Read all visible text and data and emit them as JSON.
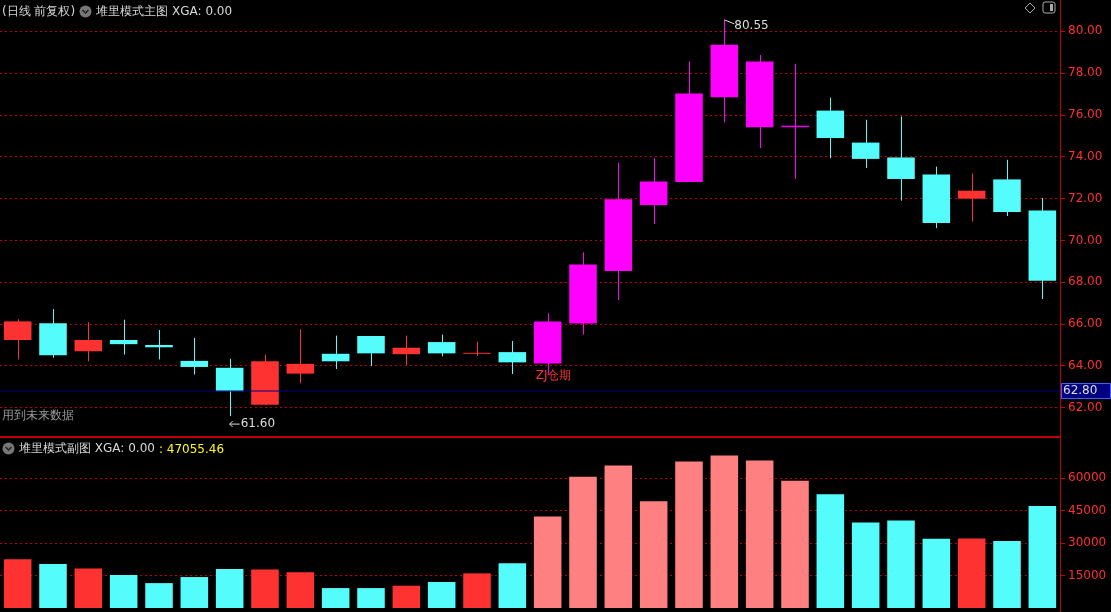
{
  "chart_data": [
    {
      "type": "candlestick",
      "title": "(日线 前复权)",
      "subtitle": "堆里模式主图 XGA: 0.00",
      "categories": [
        null,
        null,
        null,
        null,
        null,
        null,
        null,
        null,
        null,
        null,
        null,
        null,
        null,
        null,
        null,
        null,
        null,
        null,
        null,
        null,
        null,
        null,
        null,
        null,
        null,
        null,
        null,
        null,
        null,
        null
      ],
      "ohlc": [
        [
          65.24,
          66.23,
          64.31,
          66.13
        ],
        [
          66.04,
          66.72,
          64.39,
          64.51
        ],
        [
          64.7,
          66.09,
          64.22,
          65.24
        ],
        [
          65.24,
          66.21,
          64.54,
          65.04
        ],
        [
          65.0,
          65.72,
          64.31,
          64.89
        ],
        [
          64.24,
          65.34,
          63.59,
          63.95
        ],
        [
          63.91,
          64.34,
          61.6,
          62.79
        ],
        [
          62.14,
          64.53,
          62.14,
          64.22
        ],
        [
          63.63,
          65.75,
          63.17,
          64.1
        ],
        [
          64.58,
          65.45,
          63.85,
          64.22
        ],
        [
          65.43,
          65.43,
          64.0,
          64.6
        ],
        [
          64.56,
          65.45,
          64.05,
          64.87
        ],
        [
          65.14,
          65.5,
          64.46,
          64.6
        ],
        [
          64.58,
          65.16,
          64.48,
          64.6
        ],
        [
          64.66,
          65.19,
          63.61,
          64.17
        ],
        [
          64.12,
          66.52,
          63.62,
          66.12
        ],
        [
          66.03,
          69.43,
          65.5,
          68.85
        ],
        [
          68.54,
          73.72,
          67.15,
          71.97
        ],
        [
          71.69,
          73.95,
          70.78,
          72.82
        ],
        [
          72.8,
          78.56,
          72.8,
          77.03
        ],
        [
          76.85,
          80.55,
          75.65,
          79.36
        ],
        [
          75.41,
          78.87,
          74.42,
          78.56
        ],
        [
          75.44,
          78.45,
          72.94,
          75.44
        ],
        [
          76.21,
          76.83,
          73.93,
          74.9
        ],
        [
          74.68,
          75.77,
          73.46,
          73.9
        ],
        [
          73.97,
          75.93,
          71.9,
          72.94
        ],
        [
          73.15,
          73.53,
          70.59,
          70.83
        ],
        [
          72.0,
          73.2,
          70.9,
          72.38
        ],
        [
          72.92,
          73.86,
          71.17,
          71.36
        ],
        [
          71.43,
          72.03,
          67.2,
          68.07
        ]
      ],
      "colors": [
        "#ff3232",
        "#54fcfc",
        "#ff3232",
        "#54fcfc",
        "#54fcfc",
        "#54fcfc",
        "#54fcfc",
        "#ff3232",
        "#ff3232",
        "#54fcfc",
        "#54fcfc",
        "#ff3232",
        "#54fcfc",
        "#ff3232",
        "#54fcfc",
        "#ff00ff",
        "#ff00ff",
        "#ff00ff",
        "#ff00ff",
        "#ff00ff",
        "#ff00ff",
        "#ff00ff",
        "#ff00ff",
        "#54fcfc",
        "#54fcfc",
        "#54fcfc",
        "#54fcfc",
        "#ff3232",
        "#54fcfc",
        "#54fcfc"
      ],
      "ylim": [
        60.6,
        81.5
      ],
      "yticks": [
        {
          "value": 62,
          "label": "62.00"
        },
        {
          "value": 64,
          "label": "64.00"
        },
        {
          "value": 66,
          "label": "66.00"
        },
        {
          "value": 68,
          "label": "68.00"
        },
        {
          "value": 70,
          "label": "70.00"
        },
        {
          "value": 72,
          "label": "72.00"
        },
        {
          "value": 74,
          "label": "74.00"
        },
        {
          "value": 76,
          "label": "76.00"
        },
        {
          "value": 78,
          "label": "78.00"
        },
        {
          "value": 80,
          "label": "80.00"
        }
      ],
      "grid": "y",
      "tick_labels": "y",
      "ref_lines": [
        {
          "axis": "y",
          "value": 62.8,
          "label": "62.80",
          "color": "#000080"
        }
      ],
      "annotations": [
        "80.55",
        "61.60",
        {
          "text": "ZJ仓期",
          "y": 64.12
        },
        "用到未来数据"
      ]
    },
    {
      "type": "bar",
      "title": "堆里模式副图 XGA: 0.00",
      "categories": [
        null,
        null,
        null,
        null,
        null,
        null,
        null,
        null,
        null,
        null,
        null,
        null,
        null,
        null,
        null,
        null,
        null,
        null,
        null,
        null,
        null,
        null,
        null,
        null,
        null,
        null,
        null,
        null,
        null,
        null
      ],
      "values": [
        22500,
        20300,
        18300,
        15200,
        11500,
        14300,
        18000,
        17800,
        16500,
        9200,
        9200,
        10300,
        12000,
        16000,
        20700,
        42300,
        60600,
        65800,
        49300,
        67700,
        70400,
        68200,
        58800,
        52600,
        39500,
        40400,
        32000,
        32100,
        30900,
        47100
      ],
      "colors": [
        "#ff3232",
        "#54fcfc",
        "#ff3232",
        "#54fcfc",
        "#54fcfc",
        "#54fcfc",
        "#54fcfc",
        "#ff3232",
        "#ff3232",
        "#54fcfc",
        "#54fcfc",
        "#ff3232",
        "#54fcfc",
        "#ff3232",
        "#54fcfc",
        "#ff8080",
        "#ff8080",
        "#ff8080",
        "#ff8080",
        "#ff8080",
        "#ff8080",
        "#ff8080",
        "#ff8080",
        "#54fcfc",
        "#54fcfc",
        "#54fcfc",
        "#54fcfc",
        "#ff3232",
        "#54fcfc",
        "#54fcfc"
      ],
      "ylim": [
        0,
        79000
      ],
      "yticks": [
        15000,
        30000,
        45000,
        60000
      ],
      "grid": "y",
      "tick_labels": "y",
      "annotations": [
        ": 47055.46"
      ]
    }
  ]
}
